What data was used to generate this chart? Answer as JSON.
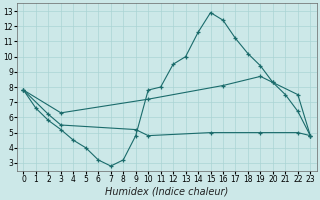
{
  "xlabel": "Humidex (Indice chaleur)",
  "xlim": [
    -0.5,
    23.5
  ],
  "ylim": [
    2.5,
    13.5
  ],
  "xticks": [
    0,
    1,
    2,
    3,
    4,
    5,
    6,
    7,
    8,
    9,
    10,
    11,
    12,
    13,
    14,
    15,
    16,
    17,
    18,
    19,
    20,
    21,
    22,
    23
  ],
  "yticks": [
    3,
    4,
    5,
    6,
    7,
    8,
    9,
    10,
    11,
    12,
    13
  ],
  "background_color": "#cce8e8",
  "line_color": "#1a6b6b",
  "grid_color": "#aad4d4",
  "line1_x": [
    0,
    1,
    2,
    3,
    4,
    5,
    6,
    7,
    8,
    9,
    10,
    11,
    12,
    13,
    14,
    15,
    16,
    17,
    18,
    19,
    20,
    21,
    22,
    23
  ],
  "line1_y": [
    7.8,
    6.6,
    5.8,
    5.2,
    4.5,
    4.0,
    3.2,
    2.8,
    3.2,
    4.8,
    7.8,
    8.0,
    9.5,
    10.0,
    11.6,
    12.9,
    12.4,
    11.2,
    10.2,
    9.4,
    8.3,
    7.5,
    6.4,
    4.8
  ],
  "line2_x": [
    0,
    2,
    3,
    9,
    10,
    15,
    19,
    22,
    23
  ],
  "line2_y": [
    7.8,
    6.2,
    5.5,
    5.2,
    4.8,
    5.0,
    5.0,
    5.0,
    4.8
  ],
  "line3_x": [
    0,
    3,
    10,
    16,
    19,
    20,
    22,
    23
  ],
  "line3_y": [
    7.8,
    6.3,
    7.2,
    8.1,
    8.7,
    8.3,
    7.5,
    4.8
  ],
  "fontsize_axis": 7,
  "tick_fontsize": 5.5
}
